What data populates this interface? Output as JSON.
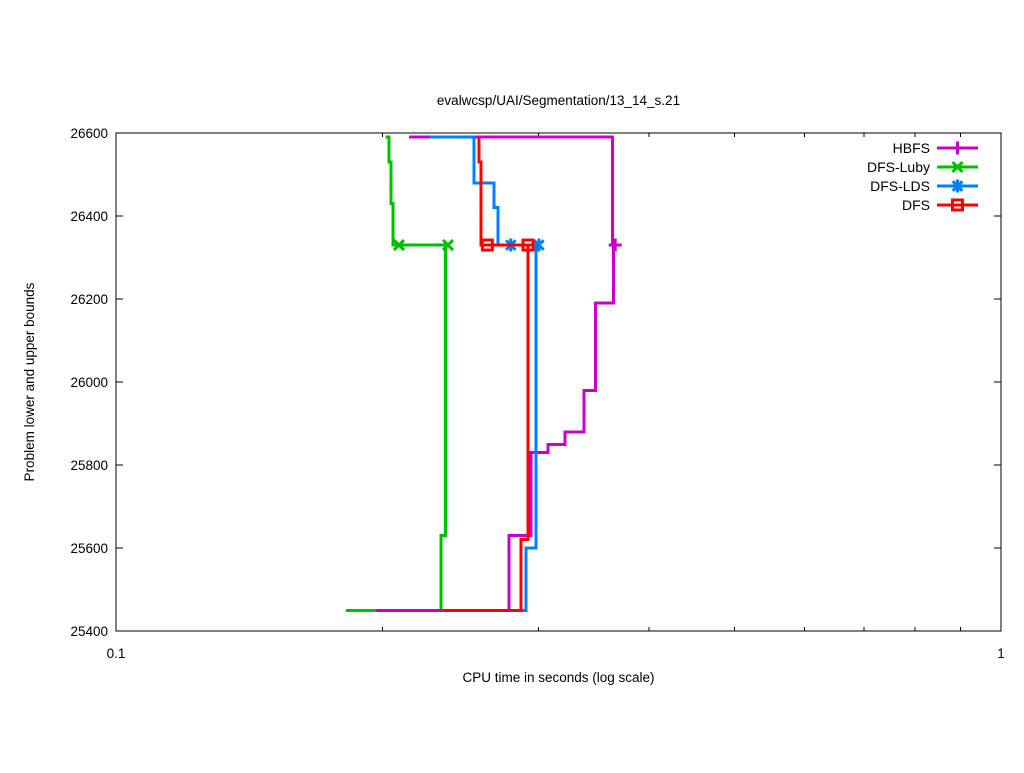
{
  "chart_data": {
    "type": "line",
    "title": "evalwcsp/UAI/Segmentation/13_14_s.21",
    "xlabel": "CPU time in seconds (log scale)",
    "ylabel": "Problem lower and upper bounds",
    "x_scale": "log",
    "xlim": [
      0.1,
      1
    ],
    "ylim": [
      25400,
      26600
    ],
    "grid": false,
    "background": "#ffffff",
    "axis_color": "#000000",
    "x_ticks": [
      {
        "v": 0.1,
        "label": "0.1"
      },
      {
        "v": 1,
        "label": "1"
      }
    ],
    "x_minor_ticks": [
      0.2,
      0.3,
      0.4,
      0.5,
      0.6,
      0.7,
      0.8,
      0.9
    ],
    "y_ticks": [
      {
        "v": 25400,
        "label": "25400"
      },
      {
        "v": 25600,
        "label": "25600"
      },
      {
        "v": 25800,
        "label": "25800"
      },
      {
        "v": 26000,
        "label": "26000"
      },
      {
        "v": 26200,
        "label": "26200"
      },
      {
        "v": 26400,
        "label": "26400"
      },
      {
        "v": 26600,
        "label": "26600"
      }
    ],
    "legend_position": "top-right",
    "draw_order": [
      "DFS-Luby",
      "HBFS",
      "DFS-LDS",
      "DFS"
    ],
    "series": [
      {
        "name": "HBFS",
        "color": "#cc00cc",
        "marker": "plus",
        "upper": [
          [
            0.2143,
            26590
          ],
          [
            0.3637,
            26590
          ],
          [
            0.3637,
            26330
          ],
          [
            0.3665,
            26330
          ]
        ],
        "lower": [
          [
            0.1966,
            25450
          ],
          [
            0.2779,
            25450
          ],
          [
            0.2779,
            25630
          ],
          [
            0.2944,
            25630
          ],
          [
            0.2944,
            25830
          ],
          [
            0.3077,
            25830
          ],
          [
            0.3077,
            25850
          ],
          [
            0.3218,
            25850
          ],
          [
            0.3218,
            25880
          ],
          [
            0.338,
            25880
          ],
          [
            0.338,
            25980
          ],
          [
            0.3484,
            25980
          ],
          [
            0.3484,
            26190
          ],
          [
            0.3648,
            26190
          ],
          [
            0.3648,
            26330
          ],
          [
            0.3665,
            26330
          ]
        ],
        "marker_points": [
          [
            0.3665,
            26330
          ]
        ]
      },
      {
        "name": "DFS-Luby",
        "color": "#00c000",
        "marker": "cross",
        "upper": [
          [
            0.2015,
            26590
          ],
          [
            0.2035,
            26590
          ],
          [
            0.2035,
            26530
          ],
          [
            0.2045,
            26530
          ],
          [
            0.2045,
            26430
          ],
          [
            0.2055,
            26430
          ],
          [
            0.2055,
            26330
          ],
          [
            0.2372,
            26330
          ]
        ],
        "lower": [
          [
            0.1819,
            25450
          ],
          [
            0.2329,
            25450
          ],
          [
            0.2329,
            25630
          ],
          [
            0.2357,
            25630
          ],
          [
            0.2357,
            26330
          ],
          [
            0.2372,
            26330
          ]
        ],
        "marker_points": [
          [
            0.2088,
            26330
          ],
          [
            0.2372,
            26330
          ]
        ]
      },
      {
        "name": "DFS-LDS",
        "color": "#0080ff",
        "marker": "asterisk",
        "upper": [
          [
            0.2262,
            26590
          ],
          [
            0.2539,
            26590
          ],
          [
            0.2539,
            26480
          ],
          [
            0.2674,
            26480
          ],
          [
            0.2674,
            26420
          ],
          [
            0.27,
            26420
          ],
          [
            0.27,
            26330
          ],
          [
            0.3005,
            26330
          ]
        ],
        "lower": [
          [
            0.2375,
            25450
          ],
          [
            0.2907,
            25450
          ],
          [
            0.2907,
            25600
          ],
          [
            0.2981,
            25600
          ],
          [
            0.2981,
            26330
          ],
          [
            0.3005,
            26330
          ]
        ],
        "marker_points": [
          [
            0.2793,
            26330
          ],
          [
            0.3005,
            26330
          ]
        ]
      },
      {
        "name": "DFS",
        "color": "#ff0000",
        "marker": "square",
        "upper": [
          [
            0.2571,
            26590
          ],
          [
            0.2571,
            26530
          ],
          [
            0.2585,
            26530
          ],
          [
            0.2585,
            26330
          ],
          [
            0.2944,
            26330
          ]
        ],
        "lower": [
          [
            0.2347,
            25450
          ],
          [
            0.2869,
            25450
          ],
          [
            0.2869,
            25620
          ],
          [
            0.2921,
            25620
          ],
          [
            0.2921,
            26330
          ]
        ],
        "marker_points": [
          [
            0.2628,
            26330
          ],
          [
            0.2921,
            26330
          ]
        ]
      }
    ]
  }
}
